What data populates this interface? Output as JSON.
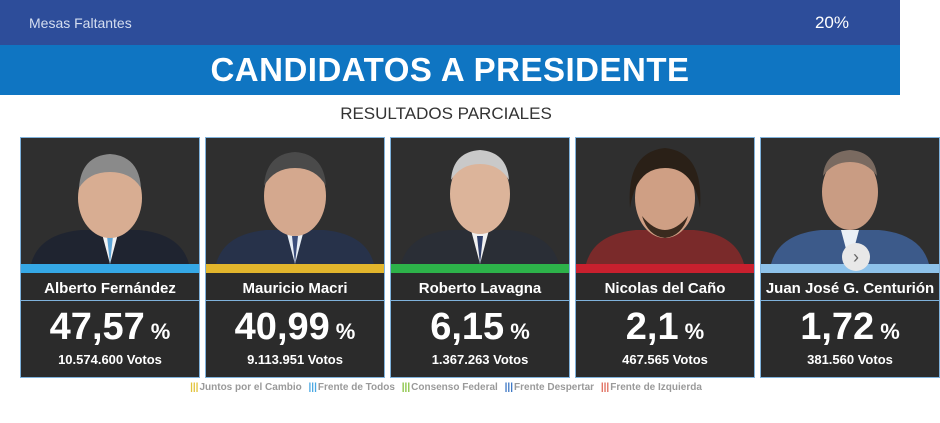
{
  "header": {
    "mesas_label": "Mesas Faltantes",
    "mesas_value": "20%"
  },
  "title": "CANDIDATOS A PRESIDENTE",
  "subtitle": "RESULTADOS PARCIALES",
  "candidates": [
    {
      "name": "Alberto Fernández",
      "percent": "47,57",
      "votes": "10.574.600 Votos",
      "color": "#35a8e6",
      "suit": "#1f2430",
      "tie": "#5ea6d8"
    },
    {
      "name": "Mauricio Macri",
      "percent": "40,99",
      "votes": "9.113.951 Votos",
      "color": "#e2b52c",
      "suit": "#27324a",
      "tie": "#3b4d7a"
    },
    {
      "name": "Roberto Lavagna",
      "percent": "6,15",
      "votes": "1.367.263 Votos",
      "color": "#2db34a",
      "suit": "#2a2e36",
      "tie": "#2e3e6a"
    },
    {
      "name": "Nicolas del Caño",
      "percent": "2,1",
      "votes": "467.565 Votos",
      "color": "#c8202e",
      "suit": "#7a2a2a",
      "tie": "#7a2a2a"
    },
    {
      "name": "Juan José G. Centurión",
      "percent": "1,72",
      "votes": "381.560 Votos",
      "color": "#8ec2ea",
      "suit": "#3c5a8a",
      "tie": "#3c5a8a"
    }
  ],
  "percent_sign": "%",
  "legend": [
    {
      "label": "Juntos por el Cambio",
      "color": "#e2c33b"
    },
    {
      "label": "Frente de Todos",
      "color": "#4aa8e3"
    },
    {
      "label": "Consenso Federal",
      "color": "#86c23e"
    },
    {
      "label": "Frente Despertar",
      "color": "#3c76c4"
    },
    {
      "label": "Frente de Izquierda",
      "color": "#e06a5a"
    }
  ],
  "icons": {
    "next": "chevron-right-icon"
  }
}
